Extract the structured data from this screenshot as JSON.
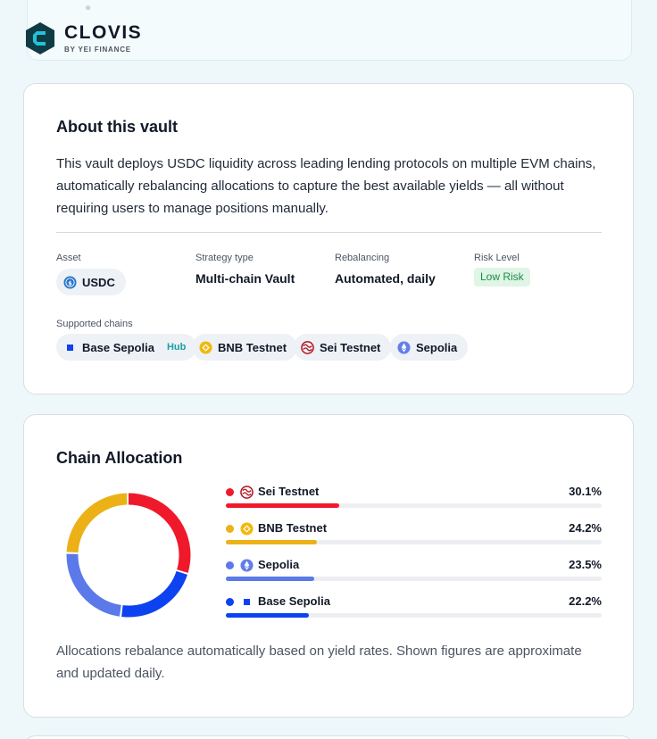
{
  "brand": {
    "name": "CLOVIS",
    "tagline": "BY YEI FINANCE"
  },
  "about": {
    "title": "About this vault",
    "description": "This vault deploys USDC liquidity across leading lending protocols on multiple EVM chains, automatically rebalancing allocations to capture the best available yields — all without requiring users to manage positions manually.",
    "asset_label": "Asset",
    "asset_value": "USDC",
    "strategy_label": "Strategy type",
    "strategy_value": "Multi-chain Vault",
    "rebalancing_label": "Rebalancing",
    "rebalancing_value": "Automated, daily",
    "risk_label": "Risk Level",
    "risk_value": "Low Risk",
    "chains_label": "Supported chains",
    "chains": [
      {
        "name": "Base Sepolia",
        "badge": "Hub",
        "icon": "base-square-icon"
      },
      {
        "name": "BNB Testnet",
        "icon": "bnb-icon"
      },
      {
        "name": "Sei Testnet",
        "icon": "sei-icon"
      },
      {
        "name": "Sepolia",
        "icon": "ethereum-icon"
      }
    ]
  },
  "allocation": {
    "title": "Chain Allocation",
    "rows": [
      {
        "name": "Sei Testnet",
        "pct_label": "30.1%",
        "pct": 30.1,
        "color": "#f0192b",
        "icon": "sei-icon"
      },
      {
        "name": "BNB Testnet",
        "pct_label": "24.2%",
        "pct": 24.2,
        "color": "#ecb116",
        "icon": "bnb-icon"
      },
      {
        "name": "Sepolia",
        "pct_label": "23.5%",
        "pct": 23.5,
        "color": "#5b79e8",
        "icon": "ethereum-icon"
      },
      {
        "name": "Base Sepolia",
        "pct_label": "22.2%",
        "pct": 22.2,
        "color": "#0d42f0",
        "icon": "base-square-icon"
      }
    ],
    "note": "Allocations rebalance automatically based on yield rates. Shown figures are approximate and updated daily."
  }
}
